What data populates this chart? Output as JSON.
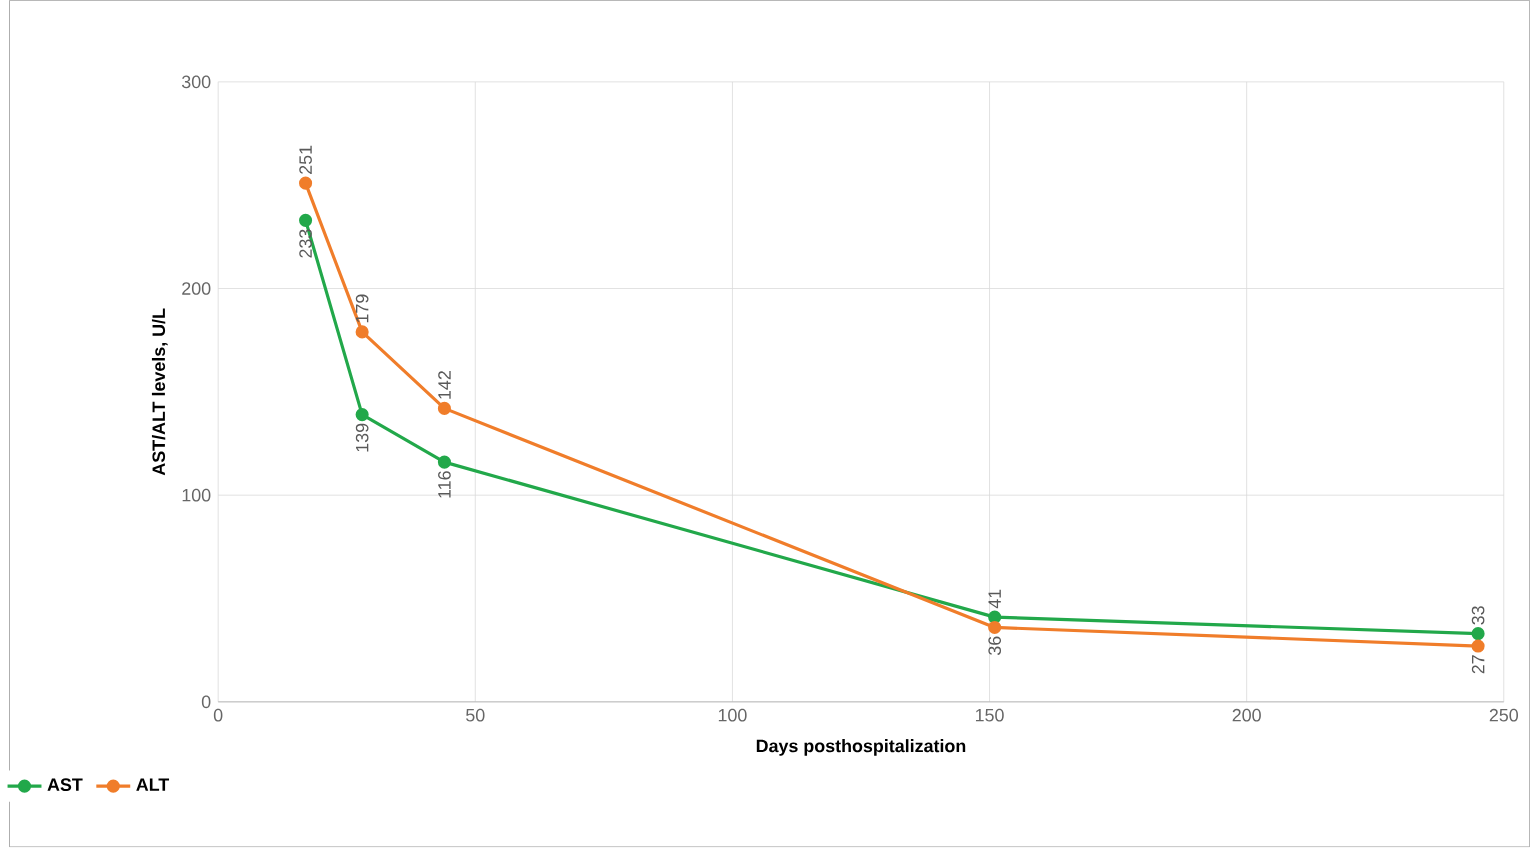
{
  "chart_data": {
    "type": "line",
    "xlabel": "Days posthospitalization",
    "ylabel": "AST/ALT levels, U/L",
    "xlim": [
      0,
      250
    ],
    "xticks": [
      0,
      50,
      100,
      150,
      200,
      250
    ],
    "ylim": [
      0,
      300
    ],
    "yticks": [
      0,
      100,
      200,
      300
    ],
    "grid": true,
    "legend": "bottom left",
    "marker": "circle",
    "line_style": "solid",
    "data_labels": true,
    "series": [
      {
        "name": "AST",
        "color": "#22a84a",
        "x": [
          17,
          28,
          44,
          151,
          245
        ],
        "values": [
          233,
          139,
          116,
          41,
          33
        ]
      },
      {
        "name": "ALT",
        "color": "#f07d2a",
        "x": [
          17,
          28,
          44,
          151,
          245
        ],
        "values": [
          251,
          179,
          142,
          36,
          27
        ]
      }
    ]
  }
}
